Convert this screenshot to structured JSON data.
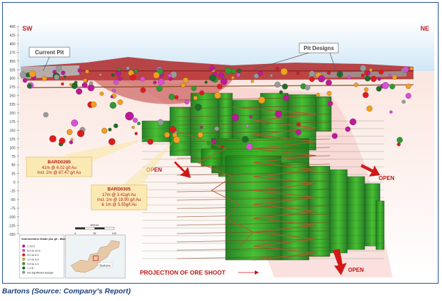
{
  "figure": {
    "orientation": {
      "left": "SW",
      "right": "NE"
    },
    "y_axis_ticks": [
      "450",
      "425",
      "400",
      "375",
      "350",
      "325",
      "300",
      "275",
      "250",
      "225",
      "200",
      "175",
      "150",
      "125",
      "100",
      "75",
      "50",
      "25",
      "0",
      "-25",
      "-50",
      "-75",
      "-100",
      "-125",
      "-150"
    ],
    "labels": {
      "current_pit": "Current Pit",
      "pit_designs": "Pit Designs",
      "open": "OPEN",
      "projection": "PROJECTION OF ORE SHOOT"
    },
    "intercepts": [
      {
        "hole": "BARD0285",
        "lines": [
          "41m @ 6.02 g/t Au",
          "Incl. 2m @ 87.47 g/t Au"
        ]
      },
      {
        "hole": "BARD0305",
        "lines": [
          "17m @ 3.41g/t Au",
          "Incl. 1m @ 19.90 g/t Au",
          "& 1m @ 5.55g/t Au"
        ]
      }
    ],
    "scale_bar": {
      "title": "Metres",
      "ticks": [
        "0",
        "50",
        "100"
      ]
    },
    "legend": {
      "title": "Intersections Grade (Au g/t - Main Lode)",
      "items": [
        {
          "label": "≥ 10.0",
          "color": "#c0189a"
        },
        {
          "label": "5.0 to 10.0",
          "color": "#d94fd6"
        },
        {
          "label": "3.0 to 5.0",
          "color": "#e01b1b"
        },
        {
          "label": "1.0 to 3.0",
          "color": "#f0a020"
        },
        {
          "label": "0.5 to 1.0",
          "color": "#2f9a2f"
        },
        {
          "label": "< 0.5",
          "color": "#1f6b2a"
        },
        {
          "label": "No significant assays",
          "color": "#9a9a9a"
        }
      ]
    },
    "locator_map_label": "Bartons"
  },
  "caption": "Bartons (Source: Company’s Report)"
}
